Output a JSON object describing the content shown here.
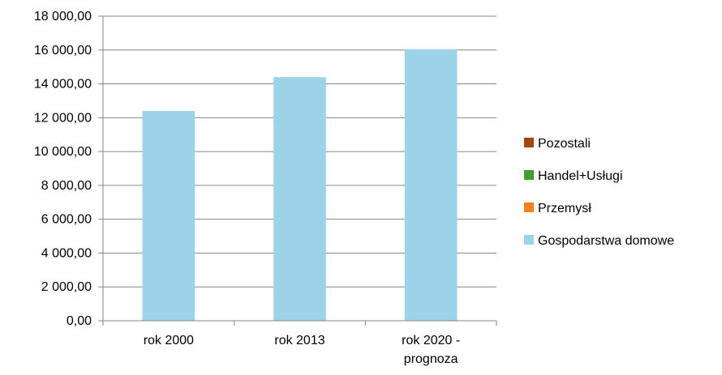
{
  "chart_data": {
    "type": "bar",
    "stacked": true,
    "categories": [
      "rok 2000",
      "rok 2013",
      "rok 2020 -\nprognoza"
    ],
    "series": [
      {
        "name": "Gospodarstwa domowe",
        "color": "#9dd3e8",
        "values": [
          12400,
          14400,
          16050
        ]
      },
      {
        "name": "Przemysł",
        "color": "#f47f1c",
        "values": [
          0,
          0,
          0
        ]
      },
      {
        "name": "Handel+Usługi",
        "color": "#3f9e2c",
        "values": [
          0,
          0,
          0
        ]
      },
      {
        "name": "Pozostali",
        "color": "#a1460f",
        "values": [
          0,
          0,
          0
        ]
      }
    ],
    "legend_order": [
      "Pozostali",
      "Handel+Usługi",
      "Przemysł",
      "Gospodarstwa domowe"
    ],
    "ylim": [
      0,
      18000
    ],
    "ytick_labels": [
      "0,00",
      "2 000,00",
      "4 000,00",
      "6 000,00",
      "8 000,00",
      "10 000,00",
      "12 000,00",
      "14 000,00",
      "16 000,00",
      "18 000,00"
    ],
    "legend_position": "right",
    "grid": true,
    "title": "",
    "xlabel": "",
    "ylabel": ""
  }
}
